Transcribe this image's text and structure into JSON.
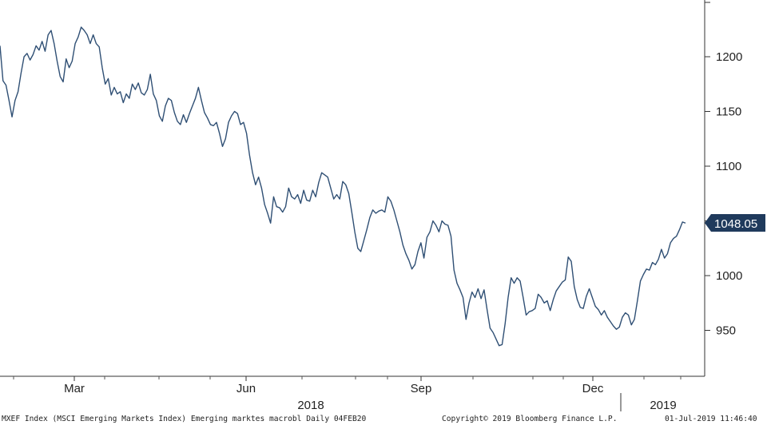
{
  "chart_data": {
    "type": "line",
    "title": "",
    "xlabel": "",
    "ylabel": "",
    "ylim": [
      905,
      1270
    ],
    "y_ticks": [
      950,
      1000,
      1050,
      1100,
      1150,
      1200
    ],
    "x_tick_labels": [
      {
        "label": "Mar"
      },
      {
        "label": "Jun"
      },
      {
        "label": "Sep"
      },
      {
        "label": "Dec"
      }
    ],
    "year_labels": [
      "2018",
      "2019"
    ],
    "last_value_label": "1048.05",
    "line_color": "#2f4f74",
    "series": [
      {
        "values": [
          1210,
          1178,
          1174,
          1160,
          1145,
          1160,
          1168,
          1185,
          1200,
          1203,
          1197,
          1202,
          1210,
          1206,
          1214,
          1205,
          1220,
          1224,
          1212,
          1196,
          1182,
          1177,
          1198,
          1190,
          1196,
          1212,
          1218,
          1227,
          1224,
          1220,
          1212,
          1220,
          1212,
          1209,
          1190,
          1175,
          1180,
          1165,
          1172,
          1166,
          1168,
          1158,
          1166,
          1162,
          1175,
          1170,
          1176,
          1167,
          1165,
          1170,
          1184,
          1166,
          1160,
          1146,
          1141,
          1155,
          1162,
          1160,
          1149,
          1141,
          1138,
          1147,
          1140,
          1148,
          1155,
          1162,
          1172,
          1160,
          1149,
          1144,
          1138,
          1137,
          1140,
          1130,
          1118,
          1125,
          1140,
          1146,
          1150,
          1148,
          1138,
          1140,
          1130,
          1110,
          1094,
          1083,
          1090,
          1080,
          1065,
          1057,
          1048,
          1072,
          1063,
          1062,
          1058,
          1063,
          1080,
          1072,
          1070,
          1074,
          1066,
          1078,
          1069,
          1068,
          1078,
          1072,
          1085,
          1094,
          1092,
          1090,
          1080,
          1070,
          1074,
          1070,
          1086,
          1083,
          1075,
          1058,
          1040,
          1025,
          1022,
          1032,
          1042,
          1053,
          1060,
          1057,
          1059,
          1060,
          1058,
          1072,
          1068,
          1060,
          1050,
          1040,
          1028,
          1020,
          1014,
          1006,
          1010,
          1022,
          1030,
          1016,
          1035,
          1040,
          1050,
          1046,
          1040,
          1050,
          1047,
          1046,
          1036,
          1005,
          993,
          987,
          980,
          960,
          975,
          985,
          980,
          988,
          979,
          987,
          969,
          952,
          948,
          942,
          936,
          937,
          956,
          980,
          998,
          993,
          998,
          995,
          980,
          964,
          967,
          968,
          970,
          983,
          980,
          975,
          977,
          968,
          978,
          986,
          990,
          994,
          996,
          1017,
          1013,
          990,
          978,
          971,
          970,
          981,
          988,
          980,
          972,
          969,
          964,
          968,
          962,
          958,
          954,
          951,
          953,
          962,
          966,
          964,
          955,
          960,
          977,
          995,
          1001,
          1006,
          1005,
          1012,
          1010,
          1015,
          1024,
          1016,
          1020,
          1030,
          1034,
          1036,
          1042,
          1049,
          1048
        ]
      }
    ]
  },
  "footer": {
    "left": "MXEF Index (MSCI Emerging Markets Index) Emerging marktes macrobl  Daily 04FEB20",
    "center": "Copyright© 2019 Bloomberg Finance L.P.",
    "right": "01-Jul-2019 11:46:40"
  }
}
